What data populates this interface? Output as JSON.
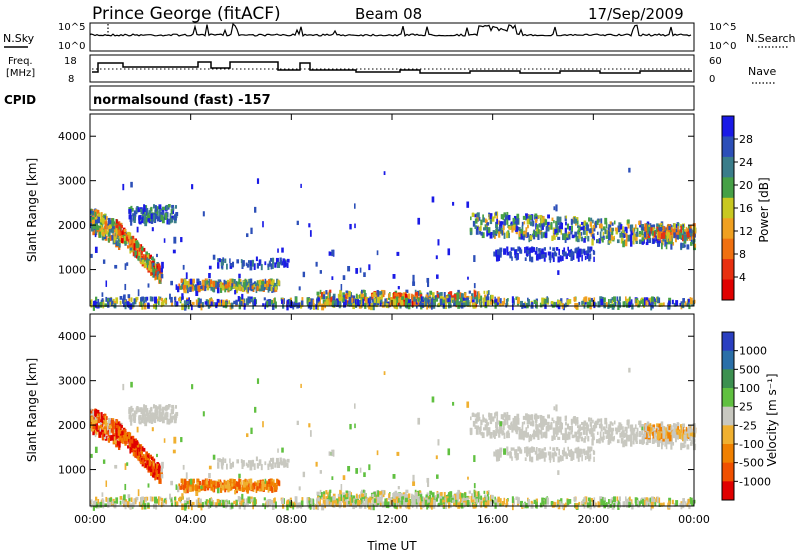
{
  "header": {
    "station": "Prince George (fitACF)",
    "beam": "Beam 08",
    "date": "17/Sep/2009"
  },
  "strips": {
    "nsky_label": "N.Sky",
    "nsky_ticks": [
      "10^5",
      "10^0"
    ],
    "nsearch_label": "N.Search",
    "nsearch_ticks": [
      "10^5",
      "10^0"
    ],
    "freq_label_1": "Freq.",
    "freq_label_2": "[MHz]",
    "freq_ticks": [
      "18",
      "8"
    ],
    "nave_label": "Nave",
    "nave_ticks": [
      "60",
      "0"
    ],
    "cpid_label": "CPID",
    "cpid_text": "normalsound (fast) -157"
  },
  "chart_data": [
    {
      "type": "heatmap",
      "name": "power",
      "ylabel": "Slant Range [km]",
      "yticks": [
        "4000",
        "3000",
        "2000",
        "1000"
      ],
      "ylim": [
        180,
        4500
      ],
      "xlim": [
        0,
        24
      ],
      "colorbar_label": "Power [dB]",
      "colorbar_ticks": [
        "28",
        "24",
        "20",
        "16",
        "12",
        "8",
        "4"
      ],
      "colors": [
        "#1a1ae6",
        "#2c4fb8",
        "#3a7d8a",
        "#46a046",
        "#c8c820",
        "#f0a020",
        "#f07010",
        "#e83010",
        "#e00000"
      ]
    },
    {
      "type": "heatmap",
      "name": "velocity",
      "ylabel": "Slant Range [km]",
      "yticks": [
        "4000",
        "3000",
        "2000",
        "1000"
      ],
      "ylim": [
        180,
        4500
      ],
      "xlim": [
        0,
        24
      ],
      "xlabel": "Time UT",
      "xticks": [
        "00:00",
        "04:00",
        "08:00",
        "12:00",
        "16:00",
        "20:00",
        "00:00"
      ],
      "colorbar_label": "Velocity [m s⁻¹]",
      "colorbar_ticks": [
        "1000",
        "500",
        "100",
        "25",
        "-25",
        "-100",
        "-500",
        "-1000"
      ],
      "colors": [
        "#2a3fc0",
        "#2a6fa8",
        "#3c9050",
        "#60c040",
        "#c8c8c0",
        "#f0b030",
        "#f08000",
        "#f05000",
        "#e00000"
      ]
    }
  ]
}
